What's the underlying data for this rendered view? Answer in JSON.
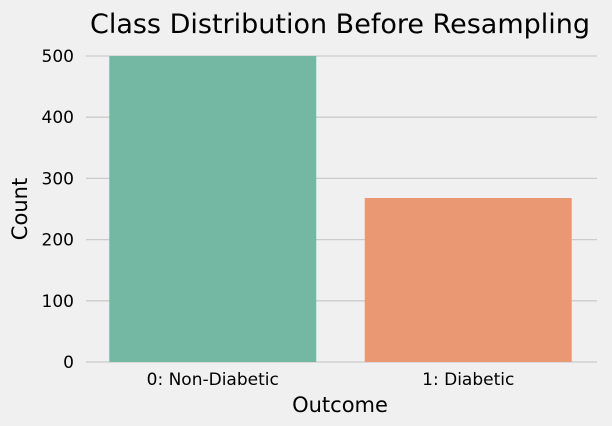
{
  "chart_data": {
    "type": "bar",
    "title": "Class Distribution Before Resampling",
    "xlabel": "Outcome",
    "ylabel": "Count",
    "categories": [
      "0: Non-Diabetic",
      "1: Diabetic"
    ],
    "values": [
      500,
      268
    ],
    "colors": [
      "#74b7a2",
      "#ea9874"
    ],
    "ylim": [
      0,
      500
    ],
    "yticks": [
      0,
      100,
      200,
      300,
      400,
      500
    ],
    "grid": "y",
    "background": "#f0f0f0"
  }
}
